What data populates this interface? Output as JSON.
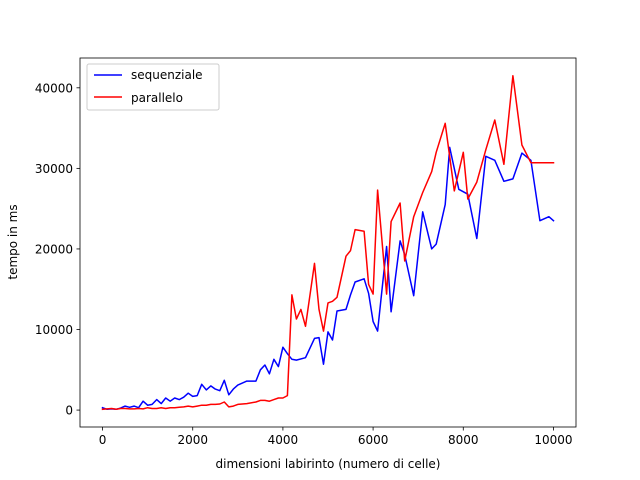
{
  "chart_data": {
    "type": "line",
    "title": "",
    "xlabel": "dimensioni labirinto (numero di celle)",
    "ylabel": "tempo in ms",
    "xlim": [
      -500,
      10500
    ],
    "ylim": [
      -2100,
      43700
    ],
    "xticks": [
      0,
      2000,
      4000,
      6000,
      8000,
      10000
    ],
    "yticks": [
      0,
      10000,
      20000,
      30000,
      40000
    ],
    "legend_position": "top-left",
    "series": [
      {
        "name": "sequenziale",
        "color": "#0000ff",
        "x": [
          0,
          100,
          200,
          300,
          400,
          500,
          600,
          700,
          800,
          900,
          1000,
          1100,
          1200,
          1300,
          1400,
          1500,
          1600,
          1700,
          1800,
          1900,
          2000,
          2100,
          2200,
          2300,
          2400,
          2500,
          2600,
          2700,
          2800,
          2900,
          3000,
          3200,
          3400,
          3500,
          3600,
          3700,
          3800,
          3900,
          4000,
          4100,
          4200,
          4300,
          4500,
          4700,
          4800,
          4900,
          5000,
          5100,
          5200,
          5400,
          5500,
          5600,
          5800,
          5900,
          6000,
          6100,
          6300,
          6400,
          6600,
          6700,
          6900,
          7100,
          7300,
          7400,
          7600,
          7700,
          7900,
          8100,
          8300,
          8500,
          8700,
          8900,
          9100,
          9300,
          9500,
          9700,
          9900,
          10000
        ],
        "values": [
          300,
          100,
          150,
          100,
          250,
          500,
          350,
          500,
          300,
          1100,
          600,
          700,
          1300,
          800,
          1500,
          1100,
          1500,
          1300,
          1600,
          2100,
          1700,
          1800,
          3200,
          2500,
          3000,
          2600,
          2400,
          3700,
          1900,
          2600,
          3100,
          3600,
          3600,
          5000,
          5600,
          4500,
          6300,
          5400,
          7800,
          7000,
          6300,
          6200,
          6500,
          8900,
          9000,
          5700,
          9700,
          8700,
          12300,
          12500,
          14300,
          15900,
          16300,
          14500,
          11000,
          9800,
          20300,
          12200,
          21000,
          19300,
          14200,
          24600,
          20000,
          20600,
          25500,
          32600,
          27400,
          26800,
          21300,
          31500,
          31000,
          28400,
          28700,
          31900,
          31000,
          23500,
          24000,
          23500
        ]
      },
      {
        "name": "parallelo",
        "color": "#ff0000",
        "x": [
          0,
          100,
          200,
          300,
          400,
          500,
          600,
          700,
          800,
          900,
          1000,
          1100,
          1200,
          1300,
          1400,
          1500,
          1600,
          1700,
          1800,
          1900,
          2000,
          2100,
          2200,
          2300,
          2400,
          2500,
          2600,
          2700,
          2800,
          2900,
          3000,
          3200,
          3400,
          3500,
          3600,
          3700,
          3800,
          3900,
          4000,
          4100,
          4200,
          4300,
          4400,
          4500,
          4700,
          4800,
          4900,
          5000,
          5100,
          5200,
          5400,
          5500,
          5600,
          5800,
          5900,
          6000,
          6100,
          6300,
          6400,
          6600,
          6700,
          6900,
          7100,
          7300,
          7400,
          7600,
          7800,
          8000,
          8100,
          8300,
          8500,
          8700,
          8900,
          9100,
          9300,
          9500,
          9700,
          9900,
          10000
        ],
        "values": [
          100,
          150,
          200,
          100,
          200,
          200,
          150,
          150,
          200,
          150,
          300,
          200,
          200,
          300,
          200,
          300,
          300,
          350,
          400,
          500,
          400,
          500,
          600,
          600,
          700,
          700,
          750,
          1000,
          400,
          500,
          700,
          800,
          1000,
          1200,
          1200,
          1100,
          1300,
          1500,
          1500,
          1800,
          14300,
          11300,
          12500,
          10400,
          18200,
          12500,
          9800,
          13300,
          13500,
          14000,
          19100,
          19800,
          22400,
          22200,
          15600,
          14400,
          27300,
          14400,
          23400,
          25700,
          18500,
          24000,
          27000,
          29600,
          32000,
          35600,
          27200,
          32000,
          26200,
          28300,
          32300,
          36000,
          30500,
          41500,
          32900,
          30700,
          30700,
          30700,
          30700
        ]
      }
    ]
  }
}
